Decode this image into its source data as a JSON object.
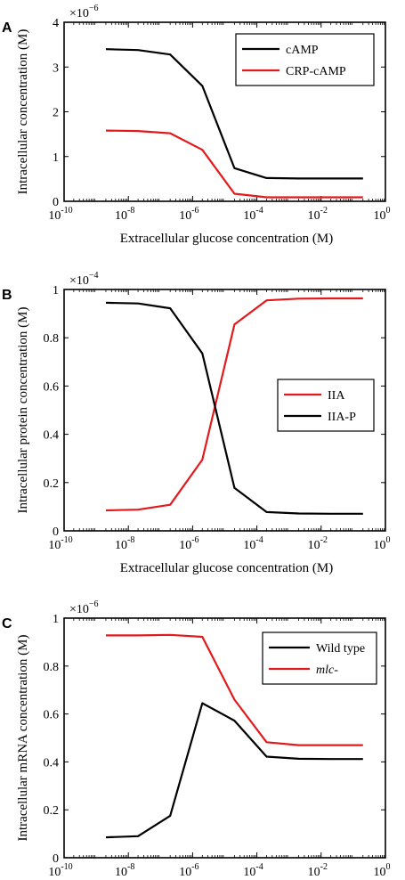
{
  "chart_data": [
    {
      "type": "line",
      "panel": "A",
      "xscale": "log",
      "xlim": [
        1e-10,
        1
      ],
      "xticks": [
        "-10",
        "-8",
        "-6",
        "-4",
        "-2",
        "0"
      ],
      "ylim": [
        0,
        4
      ],
      "yticks": [
        "0",
        "1",
        "2",
        "3",
        "4"
      ],
      "ymultiplier": {
        "base": "×10",
        "exp": "−6"
      },
      "xlabel": "Extracellular glucose concentration  (M)",
      "ylabel": "Intracellular concentration  (M)",
      "legend_position": "top-right",
      "x": [
        2e-09,
        2e-08,
        2e-07,
        2e-06,
        2e-05,
        0.0002,
        0.002,
        0.02,
        0.2
      ],
      "series": [
        {
          "name": "cAMP",
          "color": "#000000",
          "values": [
            3.4,
            3.38,
            3.28,
            2.58,
            0.74,
            0.52,
            0.51,
            0.51,
            0.51
          ]
        },
        {
          "name": "CRP-cAMP",
          "color": "#e31a1c",
          "values": [
            1.58,
            1.57,
            1.52,
            1.15,
            0.17,
            0.09,
            0.09,
            0.09,
            0.09
          ]
        }
      ]
    },
    {
      "type": "line",
      "panel": "B",
      "xscale": "log",
      "xlim": [
        1e-10,
        1
      ],
      "xticks": [
        "-10",
        "-8",
        "-6",
        "-4",
        "-2",
        "0"
      ],
      "ylim": [
        0,
        1
      ],
      "yticks": [
        "0",
        "0.2",
        "0.4",
        "0.6",
        "0.8",
        "1"
      ],
      "ymultiplier": {
        "base": "×10",
        "exp": "−4"
      },
      "xlabel": "Extracellular glucose concentration  (M)",
      "ylabel": "Intracellular protein concentration  (M)",
      "legend_position": "right",
      "x": [
        2e-09,
        2e-08,
        2e-07,
        2e-06,
        2e-05,
        0.0002,
        0.002,
        0.02,
        0.2
      ],
      "series": [
        {
          "name": "IIA",
          "color": "#e31a1c",
          "values": [
            0.085,
            0.088,
            0.108,
            0.295,
            0.855,
            0.955,
            0.962,
            0.963,
            0.963
          ]
        },
        {
          "name": "IIA-P",
          "color": "#000000",
          "values": [
            0.945,
            0.942,
            0.922,
            0.735,
            0.178,
            0.078,
            0.072,
            0.071,
            0.071
          ]
        }
      ]
    },
    {
      "type": "line",
      "panel": "C",
      "xscale": "log",
      "xlim": [
        1e-10,
        1
      ],
      "xticks": [
        "-10",
        "-8",
        "-6",
        "-4",
        "-2",
        "0"
      ],
      "ylim": [
        0,
        1
      ],
      "yticks": [
        "0",
        "0.2",
        "0.4",
        "0.6",
        "0.8",
        "1"
      ],
      "ymultiplier": {
        "base": "×10",
        "exp": "−6"
      },
      "xlabel": "Extracellular glucose concentration  (M)",
      "ylabel": "Intracellular mRNA concentration  (M)",
      "legend_position": "top-right",
      "x": [
        2e-09,
        2e-08,
        2e-07,
        2e-06,
        2e-05,
        0.0002,
        0.002,
        0.02,
        0.2
      ],
      "series": [
        {
          "name": "Wild type",
          "color": "#000000",
          "italic": false,
          "values": [
            0.085,
            0.09,
            0.175,
            0.645,
            0.572,
            0.422,
            0.413,
            0.412,
            0.412
          ]
        },
        {
          "name": "mlc-",
          "color": "#e31a1c",
          "italic": true,
          "values": [
            0.928,
            0.928,
            0.93,
            0.922,
            0.66,
            0.482,
            0.47,
            0.47,
            0.47
          ]
        }
      ]
    }
  ]
}
